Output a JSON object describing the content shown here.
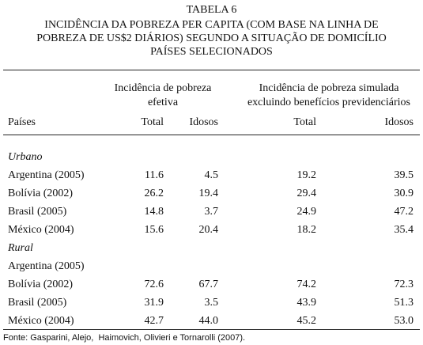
{
  "header": {
    "label": "TABELA 6",
    "title_lines": [
      "INCIDÊNCIA DA POBREZA PER CAPITA (COM BASE NA LINHA DE",
      "POBREZA DE US$2 DIÁRIOS) SEGUNDO A SITUAÇÃO DE DOMICÍLIO",
      "PAÍSES SELECIONADOS"
    ]
  },
  "table": {
    "group_headers": [
      {
        "lines": [
          "Incidência de pobreza",
          "efetiva"
        ]
      },
      {
        "lines": [
          "Incidência de pobreza simulada",
          "excluindo benefícios previdenciários"
        ]
      }
    ],
    "columns": [
      "Países",
      "Total",
      "Idosos",
      "Total",
      "Idosos"
    ],
    "sections": [
      {
        "name": "Urbano",
        "rows": [
          [
            "Argentina (2005)",
            "11.6",
            "4.5",
            "19.2",
            "39.5"
          ],
          [
            "Bolívia (2002)",
            "26.2",
            "19.4",
            "29.4",
            "30.9"
          ],
          [
            "Brasil (2005)",
            "14.8",
            "3.7",
            "24.9",
            "47.2"
          ],
          [
            "México (2004)",
            "15.6",
            "20.4",
            "18.2",
            "35.4"
          ]
        ]
      },
      {
        "name": "Rural",
        "rows": [
          [
            "Argentina (2005)",
            null,
            null,
            null,
            null
          ],
          [
            "Bolívia (2002)",
            "72.6",
            "67.7",
            "74.2",
            "72.3"
          ],
          [
            "Brasil (2005)",
            "31.9",
            "3.5",
            "43.9",
            "51.3"
          ],
          [
            "México (2004)",
            "42.7",
            "44.0",
            "45.2",
            "53.0"
          ]
        ]
      }
    ]
  },
  "footer": {
    "source": "Fonte: Gasparini, Alejo,  Haimovich, Olivieri e Tornarolli (2007)."
  }
}
